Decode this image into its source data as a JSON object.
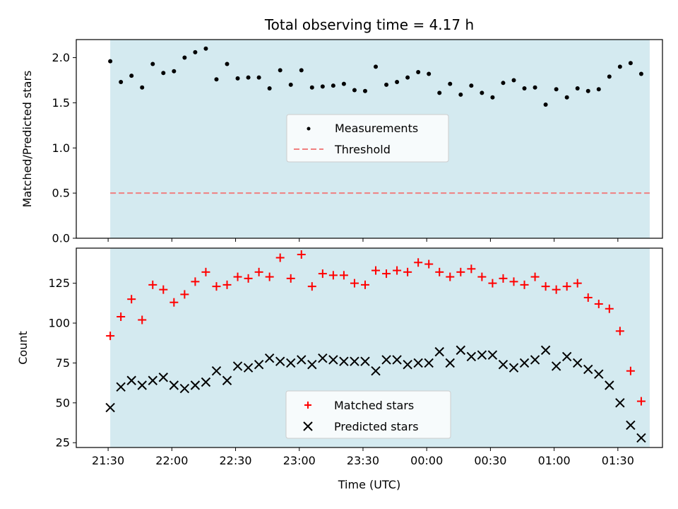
{
  "chart_data": [
    {
      "type": "scatter",
      "title": "Total observing time = 4.17 h",
      "ylabel": "Matched/Predicted stars",
      "xlabel": "",
      "ylim": [
        0,
        2.2
      ],
      "yticks": [
        0.0,
        0.5,
        1.0,
        1.5,
        2.0
      ],
      "yticklabels": [
        "0.0",
        "0.5",
        "1.0",
        "1.5",
        "2.0"
      ],
      "grid": false,
      "legend": "center",
      "shaded_region": {
        "color": "#d4eaf0",
        "x_start": "21:31",
        "x_end": "01:45"
      },
      "threshold": {
        "name": "Threshold",
        "y": 0.5,
        "color": "#f08080",
        "style": "dashed"
      },
      "series": [
        {
          "name": "Measurements",
          "color": "#000000",
          "marker": "dot",
          "x": [
            "21:31",
            "21:36",
            "21:41",
            "21:46",
            "21:51",
            "21:56",
            "22:01",
            "22:06",
            "22:11",
            "22:16",
            "22:21",
            "22:26",
            "22:31",
            "22:36",
            "22:41",
            "22:46",
            "22:51",
            "22:56",
            "23:01",
            "23:06",
            "23:11",
            "23:16",
            "23:21",
            "23:26",
            "23:31",
            "23:36",
            "23:41",
            "23:46",
            "23:51",
            "23:56",
            "00:01",
            "00:06",
            "00:11",
            "00:16",
            "00:21",
            "00:26",
            "00:31",
            "00:36",
            "00:41",
            "00:46",
            "00:51",
            "00:56",
            "01:01",
            "01:06",
            "01:11",
            "01:16",
            "01:21",
            "01:26",
            "01:31",
            "01:36",
            "01:41"
          ],
          "y": [
            1.96,
            1.73,
            1.8,
            1.67,
            1.93,
            1.83,
            1.85,
            2.0,
            2.06,
            2.1,
            1.76,
            1.93,
            1.77,
            1.78,
            1.78,
            1.66,
            1.86,
            1.7,
            1.86,
            1.67,
            1.68,
            1.69,
            1.71,
            1.64,
            1.63,
            1.9,
            1.7,
            1.73,
            1.78,
            1.84,
            1.82,
            1.61,
            1.71,
            1.59,
            1.69,
            1.61,
            1.56,
            1.72,
            1.75,
            1.66,
            1.67,
            1.48,
            1.65,
            1.56,
            1.66,
            1.63,
            1.65,
            1.79,
            1.9,
            1.94,
            1.82
          ]
        }
      ]
    },
    {
      "type": "scatter",
      "title": "",
      "ylabel": "Count",
      "xlabel": "Time (UTC)",
      "ylim": [
        22,
        147
      ],
      "yticks": [
        25,
        50,
        75,
        100,
        125
      ],
      "yticklabels": [
        "25",
        "50",
        "75",
        "100",
        "125"
      ],
      "x_tick_labels": [
        "21:30",
        "22:00",
        "22:30",
        "23:00",
        "23:30",
        "00:00",
        "00:30",
        "01:00",
        "01:30"
      ],
      "grid": false,
      "legend": "lower center",
      "shaded_region": {
        "color": "#d4eaf0",
        "x_start": "21:31",
        "x_end": "01:45"
      },
      "series": [
        {
          "name": "Matched stars",
          "color": "#ff0000",
          "marker": "plus",
          "x": [
            "21:31",
            "21:36",
            "21:41",
            "21:46",
            "21:51",
            "21:56",
            "22:01",
            "22:06",
            "22:11",
            "22:16",
            "22:21",
            "22:26",
            "22:31",
            "22:36",
            "22:41",
            "22:46",
            "22:51",
            "22:56",
            "23:01",
            "23:06",
            "23:11",
            "23:16",
            "23:21",
            "23:26",
            "23:31",
            "23:36",
            "23:41",
            "23:46",
            "23:51",
            "23:56",
            "00:01",
            "00:06",
            "00:11",
            "00:16",
            "00:21",
            "00:26",
            "00:31",
            "00:36",
            "00:41",
            "00:46",
            "00:51",
            "00:56",
            "01:01",
            "01:06",
            "01:11",
            "01:16",
            "01:21",
            "01:26",
            "01:31",
            "01:36",
            "01:41"
          ],
          "y": [
            92,
            104,
            115,
            102,
            124,
            121,
            113,
            118,
            126,
            132,
            123,
            124,
            129,
            128,
            132,
            129,
            141,
            128,
            143,
            123,
            131,
            130,
            130,
            125,
            124,
            133,
            131,
            133,
            132,
            138,
            137,
            132,
            129,
            132,
            134,
            129,
            125,
            128,
            126,
            124,
            129,
            123,
            121,
            123,
            125,
            116,
            112,
            109,
            95,
            70,
            51
          ]
        },
        {
          "name": "Predicted stars",
          "color": "#000000",
          "marker": "x",
          "x": [
            "21:31",
            "21:36",
            "21:41",
            "21:46",
            "21:51",
            "21:56",
            "22:01",
            "22:06",
            "22:11",
            "22:16",
            "22:21",
            "22:26",
            "22:31",
            "22:36",
            "22:41",
            "22:46",
            "22:51",
            "22:56",
            "23:01",
            "23:06",
            "23:11",
            "23:16",
            "23:21",
            "23:26",
            "23:31",
            "23:36",
            "23:41",
            "23:46",
            "23:51",
            "23:56",
            "00:01",
            "00:06",
            "00:11",
            "00:16",
            "00:21",
            "00:26",
            "00:31",
            "00:36",
            "00:41",
            "00:46",
            "00:51",
            "00:56",
            "01:01",
            "01:06",
            "01:11",
            "01:16",
            "01:21",
            "01:26",
            "01:31",
            "01:36",
            "01:41"
          ],
          "y": [
            47,
            60,
            64,
            61,
            64,
            66,
            61,
            59,
            61,
            63,
            70,
            64,
            73,
            72,
            74,
            78,
            76,
            75,
            77,
            74,
            78,
            77,
            76,
            76,
            76,
            70,
            77,
            77,
            74,
            75,
            75,
            82,
            75,
            83,
            79,
            80,
            80,
            74,
            72,
            75,
            77,
            83,
            73,
            79,
            75,
            71,
            68,
            61,
            50,
            36,
            28
          ]
        }
      ]
    }
  ]
}
